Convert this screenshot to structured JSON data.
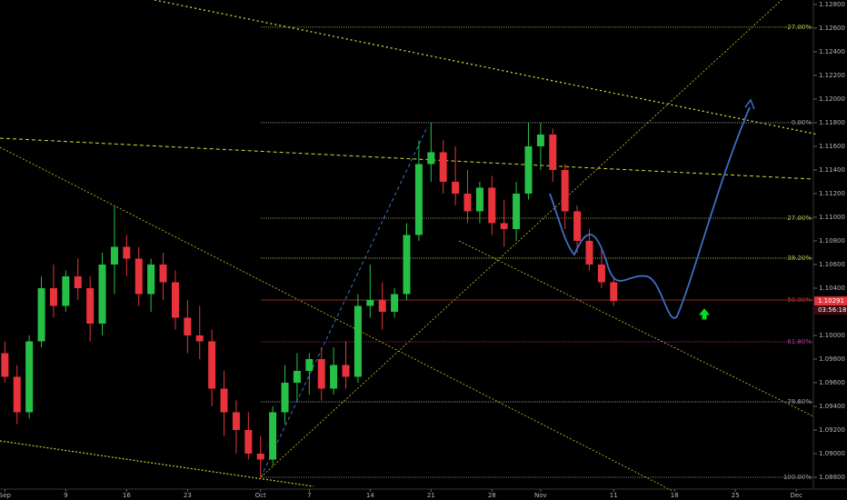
{
  "chart_data": {
    "type": "candlestick",
    "categories": [
      null,
      null,
      null,
      null,
      null,
      null,
      null,
      null,
      null,
      null,
      null,
      null,
      null,
      null,
      null,
      null,
      null,
      null,
      null,
      null,
      null,
      null,
      null,
      null,
      null,
      null,
      null,
      null,
      null,
      null,
      null,
      null,
      null,
      null,
      null,
      null,
      null,
      null,
      null,
      null,
      null,
      null,
      null,
      null,
      null,
      null,
      null,
      null,
      null,
      null,
      null
    ],
    "candles": [
      [
        1.0985,
        1.0995,
        1.096,
        1.0965
      ],
      [
        1.0965,
        1.0975,
        1.0925,
        1.0935
      ],
      [
        1.0935,
        1.1,
        1.093,
        1.0995
      ],
      [
        1.0995,
        1.105,
        1.099,
        1.104
      ],
      [
        1.104,
        1.106,
        1.1015,
        1.1025
      ],
      [
        1.1025,
        1.1055,
        1.102,
        1.105
      ],
      [
        1.105,
        1.1065,
        1.103,
        1.104
      ],
      [
        1.104,
        1.105,
        1.0995,
        1.101
      ],
      [
        1.101,
        1.107,
        1.1,
        1.106
      ],
      [
        1.106,
        1.111,
        1.1035,
        1.1075
      ],
      [
        1.1075,
        1.1085,
        1.105,
        1.1065
      ],
      [
        1.1065,
        1.1075,
        1.1025,
        1.1035
      ],
      [
        1.1035,
        1.1065,
        1.102,
        1.106
      ],
      [
        1.106,
        1.107,
        1.103,
        1.1045
      ],
      [
        1.1045,
        1.1055,
        1.1005,
        1.1015
      ],
      [
        1.1015,
        1.103,
        1.0985,
        1.1
      ],
      [
        1.1,
        1.1025,
        1.098,
        1.0995
      ],
      [
        1.0995,
        1.1005,
        1.094,
        1.0955
      ],
      [
        1.0955,
        1.097,
        1.0915,
        1.0935
      ],
      [
        1.0935,
        1.0945,
        1.09,
        1.092
      ],
      [
        1.092,
        1.0935,
        1.0895,
        1.09
      ],
      [
        1.09,
        1.0915,
        1.088,
        1.0895
      ],
      [
        1.0895,
        1.094,
        1.089,
        1.0935
      ],
      [
        1.0935,
        1.0975,
        1.0925,
        1.096
      ],
      [
        1.096,
        1.0985,
        1.0945,
        1.097
      ],
      [
        1.097,
        1.0985,
        1.095,
        1.098
      ],
      [
        1.098,
        1.099,
        1.0945,
        1.0955
      ],
      [
        1.0955,
        1.099,
        1.095,
        1.0975
      ],
      [
        1.0975,
        1.0995,
        1.0955,
        1.0965
      ],
      [
        1.0965,
        1.1035,
        1.096,
        1.1025
      ],
      [
        1.1025,
        1.106,
        1.1015,
        1.103
      ],
      [
        1.103,
        1.1045,
        1.1005,
        1.102
      ],
      [
        1.102,
        1.104,
        1.1015,
        1.1035
      ],
      [
        1.1035,
        1.1095,
        1.103,
        1.1085
      ],
      [
        1.1085,
        1.1165,
        1.108,
        1.1145
      ],
      [
        1.1145,
        1.118,
        1.113,
        1.1155
      ],
      [
        1.1155,
        1.1165,
        1.112,
        1.113
      ],
      [
        1.113,
        1.116,
        1.111,
        1.112
      ],
      [
        1.112,
        1.114,
        1.1095,
        1.1105
      ],
      [
        1.1105,
        1.113,
        1.1095,
        1.1125
      ],
      [
        1.1125,
        1.1135,
        1.1085,
        1.1095
      ],
      [
        1.1095,
        1.1115,
        1.1075,
        1.109
      ],
      [
        1.109,
        1.113,
        1.108,
        1.112
      ],
      [
        1.112,
        1.118,
        1.1115,
        1.116
      ],
      [
        1.116,
        1.118,
        1.114,
        1.117
      ],
      [
        1.117,
        1.1175,
        1.113,
        1.114
      ],
      [
        1.114,
        1.1145,
        1.109,
        1.1105
      ],
      [
        1.1105,
        1.111,
        1.107,
        1.108
      ],
      [
        1.108,
        1.109,
        1.1055,
        1.106
      ],
      [
        1.106,
        1.1075,
        1.104,
        1.1045
      ],
      [
        1.1045,
        1.105,
        1.1025,
        1.10291
      ]
    ],
    "up_color": "#26c046",
    "down_color": "#e8323c",
    "xlim": [
      -0.4,
      66.4
    ],
    "xticks": [
      {
        "value": 0,
        "label": "Sep"
      },
      {
        "value": 5,
        "label": "9"
      },
      {
        "value": 10,
        "label": "16"
      },
      {
        "value": 15,
        "label": "23"
      },
      {
        "value": 21,
        "label": "Oct"
      },
      {
        "value": 25,
        "label": "7"
      },
      {
        "value": 30,
        "label": "14"
      },
      {
        "value": 35,
        "label": "21"
      },
      {
        "value": 40,
        "label": "28"
      },
      {
        "value": 44,
        "label": "Nov"
      },
      {
        "value": 50,
        "label": "11"
      },
      {
        "value": 55,
        "label": "18"
      },
      {
        "value": 60,
        "label": "25"
      },
      {
        "value": 65,
        "label": "Dec"
      }
    ],
    "ylim": [
      1.087,
      1.12838
    ],
    "yticks": [
      {
        "value": 1.088,
        "label": "1.08800"
      },
      {
        "value": 1.09,
        "label": "1.09000"
      },
      {
        "value": 1.092,
        "label": "1.09200"
      },
      {
        "value": 1.094,
        "label": "1.09400"
      },
      {
        "value": 1.096,
        "label": "1.09600"
      },
      {
        "value": 1.098,
        "label": "1.09800"
      },
      {
        "value": 1.1,
        "label": "1.10000"
      },
      {
        "value": 1.104,
        "label": "1.10400"
      },
      {
        "value": 1.106,
        "label": "1.10600"
      },
      {
        "value": 1.108,
        "label": "1.10800"
      },
      {
        "value": 1.11,
        "label": "1.11000"
      },
      {
        "value": 1.112,
        "label": "1.11200"
      },
      {
        "value": 1.114,
        "label": "1.11400"
      },
      {
        "value": 1.116,
        "label": "1.11600"
      },
      {
        "value": 1.118,
        "label": "1.11800"
      },
      {
        "value": 1.12,
        "label": "1.12000"
      },
      {
        "value": 1.122,
        "label": "1.12200"
      },
      {
        "value": 1.124,
        "label": "1.12400"
      },
      {
        "value": 1.126,
        "label": "1.12600"
      },
      {
        "value": 1.128,
        "label": "1.12800"
      }
    ],
    "fib_levels": [
      {
        "label": "-27.00%",
        "price": 1.12608,
        "color": "#b8b84a"
      },
      {
        "label": "0.00%",
        "price": 1.118,
        "color": "#9a9a9a"
      },
      {
        "label": "27.00%",
        "price": 1.10992,
        "color": "#b8b84a"
      },
      {
        "label": "38.20%",
        "price": 1.10654,
        "color": "#b8b84a"
      },
      {
        "label": "50.00%",
        "price": 1.103,
        "color": "#c0392b"
      },
      {
        "label": "61.80%",
        "price": 1.09946,
        "color": "#b0309a"
      },
      {
        "label": "78.60%",
        "price": 1.09438,
        "color": "#9a9a9a"
      },
      {
        "label": "100.00%",
        "price": 1.088,
        "color": "#9a9a9a"
      }
    ],
    "last_price": {
      "value": 1.10291,
      "label": "1.10291"
    },
    "countdown": "03:56:18"
  }
}
